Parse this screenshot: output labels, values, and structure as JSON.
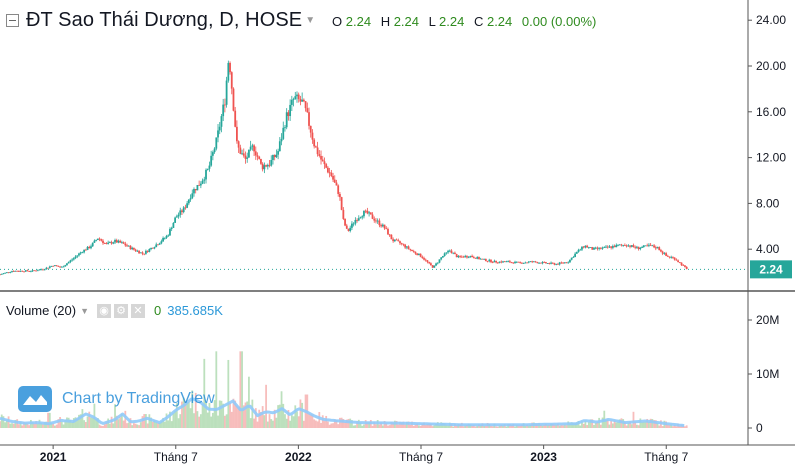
{
  "header": {
    "title": "ĐT Sao Thái Dương, D, HOSE",
    "ohlc": [
      {
        "k": "O",
        "v": "2.24"
      },
      {
        "k": "H",
        "v": "2.24"
      },
      {
        "k": "L",
        "v": "2.24"
      },
      {
        "k": "C",
        "v": "2.24"
      }
    ],
    "change": "0.00 (0.00%)"
  },
  "volume_pane": {
    "label": "Volume (20)",
    "value_0": "0",
    "value_1": "385.685K"
  },
  "watermark": {
    "text": "Chart by TradingView"
  },
  "colors": {
    "up": "#26a69a",
    "down": "#ef5350",
    "vol_ma": "#90caf9",
    "last_price": "#26a69a"
  },
  "chart_data": {
    "type": "candlestick",
    "title": "ĐT Sao Thái Dương, D, HOSE",
    "price_axis": {
      "ylim": [
        0,
        25
      ],
      "ticks": [
        "4.00",
        "8.00",
        "12.00",
        "16.00",
        "20.00",
        "24.00"
      ],
      "tick_values": [
        4,
        8,
        12,
        16,
        20,
        24
      ]
    },
    "volume_axis": {
      "ylim": [
        0,
        25000000
      ],
      "ticks": [
        "0",
        "10M",
        "20M"
      ],
      "tick_values": [
        0,
        10000000,
        20000000
      ]
    },
    "time_axis": {
      "ticks": [
        "2021",
        "Tháng 7",
        "2022",
        "Tháng 7",
        "2023",
        "Tháng 7"
      ],
      "tick_positions": [
        0.1,
        0.4,
        0.7,
        1.0,
        1.3,
        1.6
      ],
      "xlim": [
        -0.03,
        1.8
      ]
    },
    "last_price": "2.24",
    "price_path": [
      [
        -0.03,
        1.8
      ],
      [
        0.0,
        2.1
      ],
      [
        0.05,
        2.1
      ],
      [
        0.08,
        2.3
      ],
      [
        0.1,
        2.6
      ],
      [
        0.12,
        2.4
      ],
      [
        0.15,
        3.2
      ],
      [
        0.17,
        3.8
      ],
      [
        0.19,
        4.2
      ],
      [
        0.21,
        5.0
      ],
      [
        0.23,
        4.4
      ],
      [
        0.25,
        4.7
      ],
      [
        0.27,
        4.5
      ],
      [
        0.29,
        4.1
      ],
      [
        0.32,
        3.6
      ],
      [
        0.34,
        4.1
      ],
      [
        0.36,
        4.6
      ],
      [
        0.38,
        5.2
      ],
      [
        0.4,
        6.8
      ],
      [
        0.42,
        7.5
      ],
      [
        0.44,
        9.0
      ],
      [
        0.46,
        9.8
      ],
      [
        0.48,
        11.0
      ],
      [
        0.5,
        13.5
      ],
      [
        0.52,
        17.0
      ],
      [
        0.53,
        21.0
      ],
      [
        0.55,
        13.0
      ],
      [
        0.57,
        11.8
      ],
      [
        0.59,
        13.0
      ],
      [
        0.61,
        11.2
      ],
      [
        0.63,
        11.5
      ],
      [
        0.65,
        12.5
      ],
      [
        0.67,
        15.5
      ],
      [
        0.69,
        17.2
      ],
      [
        0.71,
        16.8
      ],
      [
        0.72,
        15.8
      ],
      [
        0.74,
        13.0
      ],
      [
        0.76,
        11.5
      ],
      [
        0.78,
        10.5
      ],
      [
        0.8,
        8.8
      ],
      [
        0.81,
        6.5
      ],
      [
        0.82,
        5.5
      ],
      [
        0.84,
        6.6
      ],
      [
        0.86,
        7.2
      ],
      [
        0.87,
        7.1
      ],
      [
        0.89,
        6.5
      ],
      [
        0.91,
        5.9
      ],
      [
        0.93,
        4.8
      ],
      [
        0.95,
        4.5
      ],
      [
        0.98,
        3.8
      ],
      [
        1.0,
        3.4
      ],
      [
        1.02,
        2.7
      ],
      [
        1.03,
        2.4
      ],
      [
        1.05,
        3.3
      ],
      [
        1.07,
        3.9
      ],
      [
        1.09,
        3.3
      ],
      [
        1.12,
        3.4
      ],
      [
        1.15,
        3.1
      ],
      [
        1.18,
        2.9
      ],
      [
        1.21,
        2.9
      ],
      [
        1.24,
        2.8
      ],
      [
        1.27,
        2.9
      ],
      [
        1.3,
        2.8
      ],
      [
        1.33,
        2.7
      ],
      [
        1.36,
        2.9
      ],
      [
        1.38,
        3.7
      ],
      [
        1.4,
        4.3
      ],
      [
        1.42,
        4.0
      ],
      [
        1.45,
        4.1
      ],
      [
        1.48,
        4.3
      ],
      [
        1.5,
        4.4
      ],
      [
        1.53,
        4.1
      ],
      [
        1.56,
        4.3
      ],
      [
        1.58,
        4.1
      ],
      [
        1.6,
        3.4
      ],
      [
        1.62,
        3.2
      ],
      [
        1.64,
        2.6
      ],
      [
        1.65,
        2.24
      ]
    ],
    "volume_ma_path": [
      [
        -0.03,
        1.8
      ],
      [
        0.0,
        1.2
      ],
      [
        0.03,
        0.9
      ],
      [
        0.06,
        1.0
      ],
      [
        0.09,
        0.8
      ],
      [
        0.12,
        1.4
      ],
      [
        0.15,
        1.2
      ],
      [
        0.18,
        2.6
      ],
      [
        0.2,
        2.0
      ],
      [
        0.22,
        0.8
      ],
      [
        0.25,
        1.5
      ],
      [
        0.27,
        2.6
      ],
      [
        0.29,
        1.1
      ],
      [
        0.31,
        1.3
      ],
      [
        0.33,
        1.8
      ],
      [
        0.36,
        1.0
      ],
      [
        0.38,
        2.0
      ],
      [
        0.4,
        3.3
      ],
      [
        0.42,
        4.2
      ],
      [
        0.44,
        5.5
      ],
      [
        0.46,
        4.8
      ],
      [
        0.48,
        3.5
      ],
      [
        0.5,
        3.4
      ],
      [
        0.52,
        4.2
      ],
      [
        0.54,
        5.0
      ],
      [
        0.56,
        3.2
      ],
      [
        0.58,
        4.2
      ],
      [
        0.6,
        2.3
      ],
      [
        0.62,
        3.0
      ],
      [
        0.64,
        2.8
      ],
      [
        0.66,
        3.6
      ],
      [
        0.68,
        2.4
      ],
      [
        0.7,
        3.6
      ],
      [
        0.72,
        3.0
      ],
      [
        0.74,
        2.2
      ],
      [
        0.76,
        1.6
      ],
      [
        0.8,
        1.3
      ],
      [
        0.85,
        1.0
      ],
      [
        0.95,
        0.9
      ],
      [
        1.1,
        0.6
      ],
      [
        1.25,
        0.6
      ],
      [
        1.38,
        0.8
      ],
      [
        1.4,
        1.4
      ],
      [
        1.43,
        1.1
      ],
      [
        1.46,
        1.6
      ],
      [
        1.5,
        1.0
      ],
      [
        1.55,
        1.3
      ],
      [
        1.6,
        0.8
      ],
      [
        1.65,
        0.4
      ]
    ],
    "volume_spikes": [
      [
        0.09,
        2.8
      ],
      [
        0.2,
        4.5
      ],
      [
        0.25,
        4.4
      ],
      [
        0.43,
        4.8
      ],
      [
        0.45,
        6.5
      ],
      [
        0.47,
        12.8
      ],
      [
        0.5,
        14.2
      ],
      [
        0.53,
        12.6
      ],
      [
        0.56,
        14.2
      ],
      [
        0.58,
        9.5
      ],
      [
        0.62,
        8.0
      ],
      [
        0.66,
        6.8
      ],
      [
        0.72,
        6.2
      ],
      [
        1.45,
        3.2
      ],
      [
        1.52,
        3.0
      ]
    ]
  }
}
